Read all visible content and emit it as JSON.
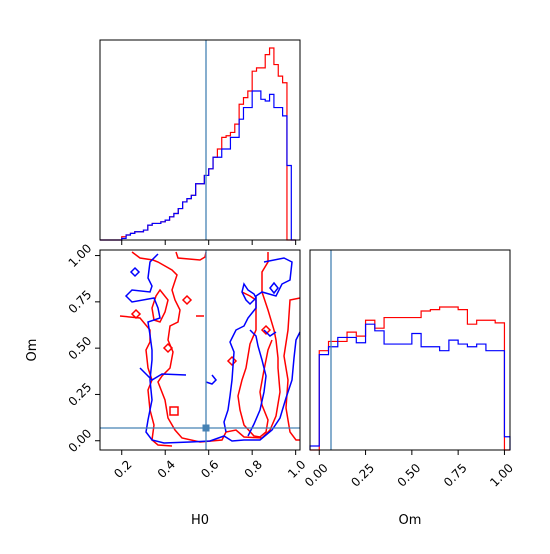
{
  "chart_data": {
    "type": "corner",
    "colors": {
      "red": "#ff0000",
      "blue": "#0000ff",
      "truth": "#4682b4"
    },
    "truth": {
      "H0": 0.59,
      "Om": 0.06
    },
    "axes": [
      {
        "name": "H0",
        "label": "H0",
        "xlim": [
          0.1,
          1.02
        ],
        "ticks": [
          "0.2",
          "0.4",
          "0.6",
          "0.8",
          "1.0"
        ]
      },
      {
        "name": "Om",
        "label": "Om",
        "xlim": [
          -0.05,
          1.03
        ],
        "ticks": [
          "0.00",
          "0.25",
          "0.50",
          "0.75",
          "1.00"
        ]
      }
    ],
    "om_y_ticks": [
      "0.00",
      "0.25",
      "0.50",
      "0.75",
      "1.00"
    ],
    "hist_H0": {
      "bins": [
        0.1,
        0.12,
        0.14,
        0.16,
        0.18,
        0.2,
        0.22,
        0.24,
        0.26,
        0.28,
        0.3,
        0.32,
        0.34,
        0.36,
        0.38,
        0.4,
        0.42,
        0.44,
        0.46,
        0.48,
        0.5,
        0.52,
        0.54,
        0.56,
        0.58,
        0.6,
        0.62,
        0.64,
        0.66,
        0.68,
        0.7,
        0.72,
        0.74,
        0.76,
        0.78,
        0.8,
        0.82,
        0.84,
        0.86,
        0.88,
        0.9,
        0.92,
        0.94,
        0.96,
        0.98,
        1.0
      ],
      "red": [
        0,
        0,
        0,
        0,
        0,
        2,
        3,
        4,
        5,
        5,
        6,
        9,
        10,
        10,
        11,
        12,
        14,
        16,
        19,
        23,
        25,
        27,
        34,
        34,
        39,
        43,
        50,
        55,
        62,
        63,
        65,
        70,
        82,
        86,
        90,
        102,
        104,
        104,
        112,
        116,
        106,
        99,
        95,
        0,
        0
      ],
      "blue": [
        0,
        0,
        0,
        0,
        0,
        1,
        3,
        4,
        5,
        5,
        6,
        9,
        10,
        10,
        11,
        12,
        14,
        16,
        19,
        23,
        25,
        27,
        34,
        34,
        39,
        43,
        50,
        50,
        55,
        55,
        62,
        62,
        73,
        80,
        80,
        90,
        90,
        85,
        84,
        88,
        80,
        80,
        75,
        45,
        0
      ]
    },
    "hist_Om": {
      "bins": [
        -0.05,
        0.0,
        0.05,
        0.1,
        0.15,
        0.2,
        0.25,
        0.3,
        0.35,
        0.4,
        0.45,
        0.5,
        0.55,
        0.6,
        0.65,
        0.7,
        0.75,
        0.8,
        0.85,
        0.9,
        0.95,
        1.0,
        1.03
      ],
      "red": [
        0,
        75,
        82,
        82,
        89,
        86,
        98,
        92,
        100,
        100,
        100,
        100,
        105,
        106,
        108,
        108,
        106,
        95,
        98,
        98,
        96,
        0
      ],
      "blue": [
        3,
        72,
        78,
        85,
        85,
        81,
        95,
        90,
        80,
        80,
        80,
        88,
        78,
        78,
        75,
        83,
        80,
        78,
        80,
        75,
        75,
        10
      ]
    }
  }
}
